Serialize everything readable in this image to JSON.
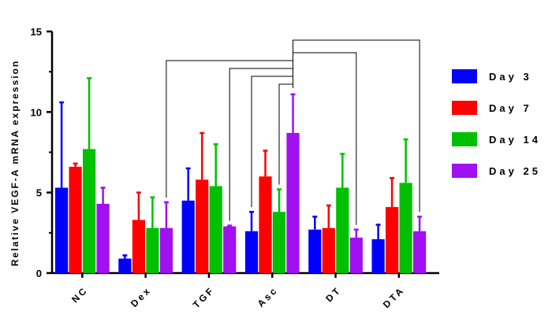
{
  "chart_data": {
    "type": "bar",
    "title": "",
    "xlabel": "",
    "ylabel": "Relative VEGF-A mRNA expression",
    "ylim": [
      0,
      15
    ],
    "yticks": [
      "0",
      "5",
      "10",
      "15"
    ],
    "grid": false,
    "legend_position": "right",
    "categories": [
      "NC",
      "Dex",
      "TGF",
      "Asc",
      "DT",
      "DTA"
    ],
    "series": [
      {
        "name": "Day 3",
        "color": "#0000ff",
        "values": [
          5.3,
          0.9,
          4.5,
          2.6,
          2.7,
          2.1
        ],
        "errors": [
          5.3,
          0.2,
          2.0,
          1.2,
          0.8,
          0.9
        ]
      },
      {
        "name": "Day 7",
        "color": "#ff0000",
        "values": [
          6.6,
          3.3,
          5.8,
          6.0,
          2.8,
          4.1
        ],
        "errors": [
          0.2,
          1.7,
          2.9,
          1.6,
          1.4,
          1.8
        ]
      },
      {
        "name": "Day 14",
        "color": "#00c000",
        "values": [
          7.7,
          2.8,
          5.4,
          3.8,
          5.3,
          5.6
        ],
        "errors": [
          4.4,
          1.9,
          2.6,
          1.4,
          2.1,
          2.7
        ]
      },
      {
        "name": "Day 25",
        "color": "#a010f0",
        "values": [
          4.3,
          2.8,
          2.9,
          8.7,
          2.2,
          2.6
        ],
        "errors": [
          1.0,
          1.6,
          0.05,
          2.4,
          0.5,
          0.9
        ]
      }
    ],
    "comparisons": [
      {
        "from": "Asc",
        "to": "Dex"
      },
      {
        "from": "Asc",
        "to": "TGF"
      },
      {
        "from": "Asc",
        "to": "Asc"
      },
      {
        "from": "Asc",
        "to": "DT"
      },
      {
        "from": "Asc",
        "to": "DTA"
      }
    ]
  }
}
